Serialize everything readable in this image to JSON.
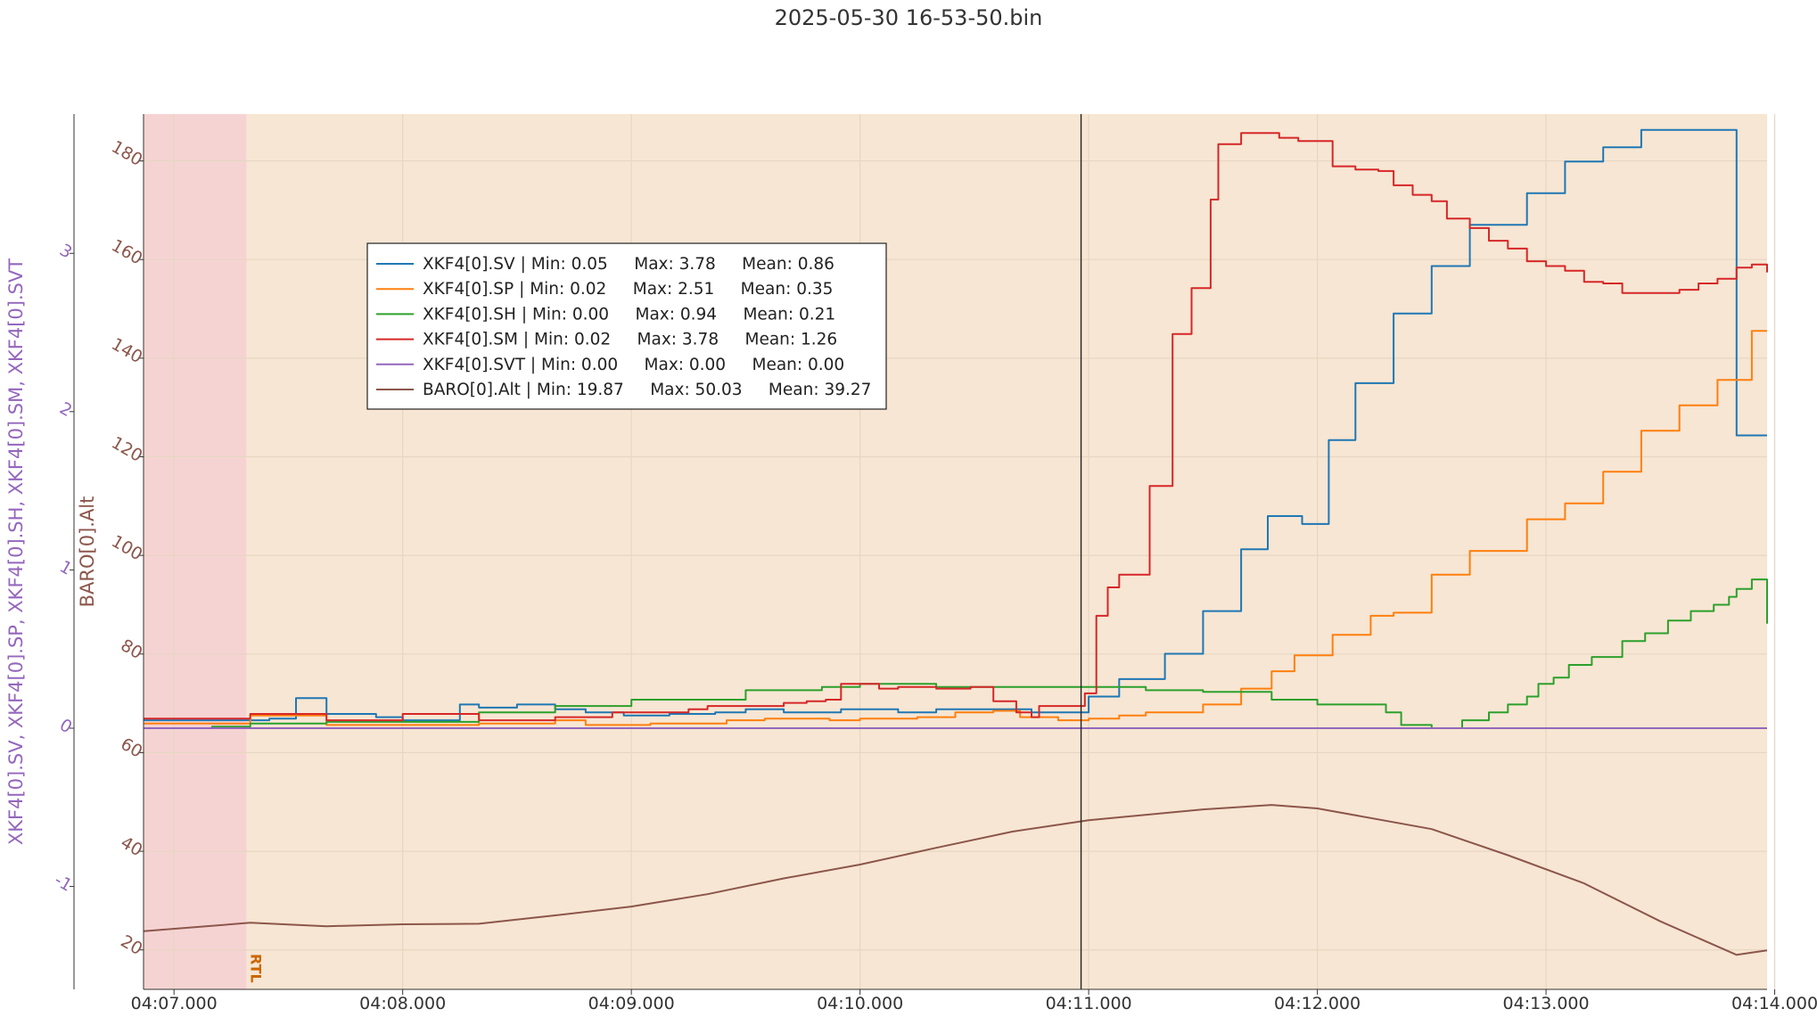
{
  "chart_data": {
    "type": "line",
    "title": "2025-05-30 16-53-50.bin",
    "x_ticks": [
      "04:07.000",
      "04:08.000",
      "04:09.000",
      "04:10.000",
      "04:11.000",
      "04:12.000",
      "04:13.000",
      "04:14.000"
    ],
    "x_range_seconds": [
      -8,
      418
    ],
    "cursor_x_seconds": 238,
    "mode_band": {
      "label": "RTL",
      "start_seconds": 19,
      "color": "#f7e6d3"
    },
    "pre_mode_band_color": "#f6d3d3",
    "y_left_outer": {
      "label": "XKF4[0].SV, XKF4[0].SP, XKF4[0].SH, XKF4[0].SM, XKF4[0].SVT",
      "ticks": [
        "-1",
        "0",
        "1",
        "2",
        "3"
      ],
      "range": [
        -1.65,
        3.88
      ],
      "color": "#9467bd"
    },
    "y_left_inner": {
      "label": "BARO[0].Alt",
      "ticks": [
        "20",
        "40",
        "60",
        "80",
        "100",
        "120",
        "140",
        "160",
        "180"
      ],
      "range": [
        12,
        189.5
      ],
      "color": "#8c564b"
    },
    "legend": [
      {
        "name": "XKF4[0].SV",
        "min": "0.05",
        "max": "3.78",
        "mean": "0.86",
        "color": "#1f77b4",
        "text": "XKF4[0].SV | Min: 0.05     Max: 3.78     Mean: 0.86"
      },
      {
        "name": "XKF4[0].SP",
        "min": "0.02",
        "max": "2.51",
        "mean": "0.35",
        "color": "#ff7f0e",
        "text": "XKF4[0].SP | Min: 0.02     Max: 2.51     Mean: 0.35"
      },
      {
        "name": "XKF4[0].SH",
        "min": "0.00",
        "max": "0.94",
        "mean": "0.21",
        "color": "#2ca02c",
        "text": "XKF4[0].SH | Min: 0.00     Max: 0.94     Mean: 0.21"
      },
      {
        "name": "XKF4[0].SM",
        "min": "0.02",
        "max": "3.78",
        "mean": "1.26",
        "color": "#d62728",
        "text": "XKF4[0].SM | Min: 0.02     Max: 3.78     Mean: 1.26"
      },
      {
        "name": "XKF4[0].SVT",
        "min": "0.00",
        "max": "0.00",
        "mean": "0.00",
        "color": "#9467bd",
        "text": "XKF4[0].SVT | Min: 0.00     Max: 0.00     Mean: 0.00"
      },
      {
        "name": "BARO[0].Alt",
        "min": "19.87",
        "max": "50.03",
        "mean": "39.27",
        "color": "#8c564b",
        "text": "BARO[0].Alt | Min: 19.87     Max: 50.03     Mean: 39.27"
      }
    ],
    "series": [
      {
        "name": "XKF4[0].SV",
        "axis": "outer",
        "color": "#1f77b4",
        "step": true,
        "x": [
          -8,
          25,
          32,
          40,
          53,
          60,
          66,
          75,
          80,
          90,
          100,
          108,
          118,
          130,
          142,
          150,
          160,
          175,
          190,
          200,
          225,
          232,
          240,
          248,
          260,
          270,
          280,
          287,
          296,
          303,
          310,
          320,
          330,
          340,
          355,
          365,
          375,
          385,
          390,
          400,
          410,
          414,
          418
        ],
        "y": [
          0.05,
          0.06,
          0.19,
          0.09,
          0.07,
          0.05,
          0.05,
          0.15,
          0.13,
          0.15,
          0.12,
          0.1,
          0.08,
          0.09,
          0.1,
          0.12,
          0.1,
          0.12,
          0.1,
          0.12,
          0.1,
          0.1,
          0.2,
          0.31,
          0.47,
          0.74,
          1.13,
          1.34,
          1.29,
          1.82,
          2.18,
          2.62,
          2.92,
          3.18,
          3.38,
          3.58,
          3.67,
          3.78,
          3.78,
          3.78,
          1.85,
          1.85,
          1.85
        ]
      },
      {
        "name": "XKF4[0].SP",
        "axis": "outer",
        "color": "#ff7f0e",
        "step": true,
        "x": [
          -8,
          20,
          40,
          60,
          80,
          100,
          108,
          125,
          145,
          155,
          172,
          180,
          195,
          205,
          215,
          222,
          232,
          240,
          248,
          255,
          270,
          280,
          288,
          294,
          304,
          314,
          320,
          330,
          340,
          355,
          365,
          375,
          385,
          395,
          405,
          414,
          418
        ],
        "y": [
          0.03,
          0.08,
          0.02,
          0.02,
          0.03,
          0.05,
          0.02,
          0.03,
          0.05,
          0.06,
          0.05,
          0.06,
          0.07,
          0.1,
          0.11,
          0.07,
          0.05,
          0.06,
          0.08,
          0.1,
          0.15,
          0.25,
          0.36,
          0.46,
          0.59,
          0.71,
          0.73,
          0.97,
          1.12,
          1.32,
          1.42,
          1.62,
          1.88,
          2.04,
          2.2,
          2.51,
          2.51
        ]
      },
      {
        "name": "XKF4[0].SH",
        "axis": "outer",
        "color": "#2ca02c",
        "step": true,
        "x": [
          -8,
          10,
          20,
          40,
          60,
          80,
          100,
          120,
          150,
          170,
          180,
          200,
          220,
          240,
          255,
          270,
          288,
          300,
          318,
          322,
          330,
          338,
          345,
          350,
          355,
          358,
          362,
          366,
          372,
          380,
          386,
          392,
          398,
          404,
          408,
          410,
          414,
          418
        ],
        "y": [
          0.0,
          0.01,
          0.03,
          0.04,
          0.04,
          0.1,
          0.14,
          0.18,
          0.24,
          0.26,
          0.28,
          0.26,
          0.26,
          0.26,
          0.24,
          0.23,
          0.18,
          0.15,
          0.1,
          0.02,
          0.0,
          0.05,
          0.1,
          0.15,
          0.2,
          0.28,
          0.32,
          0.4,
          0.45,
          0.55,
          0.6,
          0.68,
          0.74,
          0.78,
          0.83,
          0.88,
          0.94,
          0.66
        ]
      },
      {
        "name": "XKF4[0].SM",
        "axis": "outer",
        "color": "#d62728",
        "step": true,
        "x": [
          -8,
          20,
          40,
          60,
          80,
          100,
          115,
          135,
          140,
          160,
          166,
          171,
          175,
          185,
          190,
          200,
          209,
          215,
          221,
          225,
          227,
          239,
          242,
          245,
          248,
          256,
          262,
          267,
          272,
          274,
          280,
          286,
          290,
          295,
          300,
          304,
          310,
          316,
          320,
          325,
          330,
          334,
          340,
          345,
          350,
          355,
          360,
          365,
          370,
          375,
          380,
          390,
          395,
          400,
          405,
          410,
          414,
          418
        ],
        "y": [
          0.06,
          0.09,
          0.05,
          0.09,
          0.05,
          0.07,
          0.1,
          0.12,
          0.14,
          0.16,
          0.17,
          0.18,
          0.28,
          0.25,
          0.26,
          0.25,
          0.26,
          0.17,
          0.1,
          0.07,
          0.14,
          0.22,
          0.71,
          0.89,
          0.97,
          1.53,
          2.49,
          2.78,
          3.34,
          3.69,
          3.76,
          3.76,
          3.73,
          3.71,
          3.71,
          3.55,
          3.53,
          3.52,
          3.43,
          3.37,
          3.33,
          3.22,
          3.16,
          3.08,
          3.03,
          2.95,
          2.92,
          2.89,
          2.82,
          2.81,
          2.75,
          2.75,
          2.77,
          2.81,
          2.84,
          2.91,
          2.93,
          2.88
        ]
      },
      {
        "name": "XKF4[0].SVT",
        "axis": "outer",
        "color": "#9467bd",
        "step": false,
        "x": [
          -8,
          418
        ],
        "y": [
          0.0,
          0.0
        ]
      },
      {
        "name": "BARO[0].Alt",
        "axis": "inner",
        "color": "#8c564b",
        "step": false,
        "x": [
          -8,
          20,
          40,
          60,
          80,
          100,
          120,
          140,
          160,
          180,
          200,
          220,
          240,
          270,
          288,
          300,
          330,
          350,
          370,
          390,
          410,
          418
        ],
        "y": [
          23.8,
          25.5,
          24.8,
          25.2,
          25.3,
          27.0,
          28.8,
          31.3,
          34.5,
          37.3,
          40.7,
          44.0,
          46.3,
          48.5,
          49.4,
          48.7,
          44.5,
          39.2,
          33.5,
          25.8,
          19.0,
          19.9
        ]
      }
    ]
  }
}
